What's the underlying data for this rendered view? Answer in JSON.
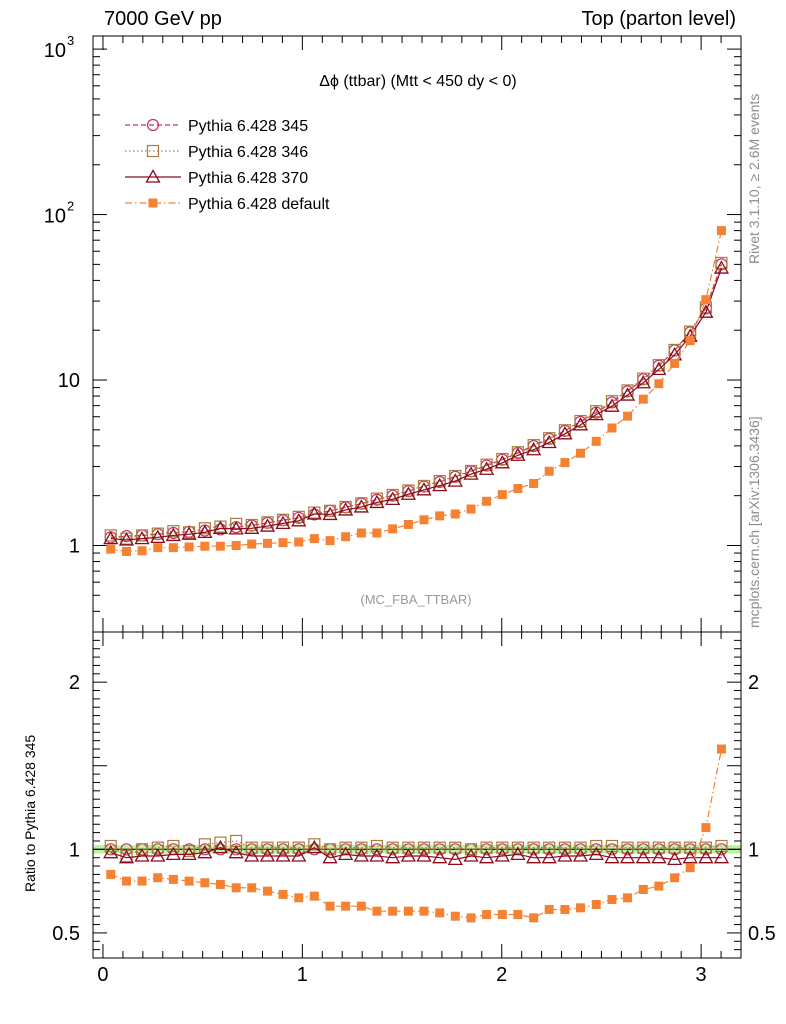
{
  "header": {
    "left": "7000 GeV pp",
    "right": "Top (parton level)"
  },
  "side_labels": {
    "rivet": "Rivet 3.1.10, ≥ 2.6M events",
    "mcplots": "mcplots.cern.ch [arXiv:1306.3436]"
  },
  "colors": {
    "p345": "#c8325a",
    "p346": "#a67c40",
    "p370": "#8b0a1e",
    "default": "#f58232",
    "band": "#a0f07a"
  },
  "chart_data": [
    {
      "type": "line",
      "title": "Δϕ (ttbar) (Mtt < 450 dy < 0)",
      "watermark": "(MC_FBA_TTBAR)",
      "xlabel": "",
      "ylabel": "",
      "xlim": [
        -0.05,
        3.2
      ],
      "ylim": [
        0.3,
        1200
      ],
      "yscale": "log",
      "yticks": [
        {
          "value": 1,
          "label": "1"
        },
        {
          "value": 10,
          "label": "10"
        },
        {
          "value": 100,
          "label": "10",
          "exp": "2"
        },
        {
          "value": 1000,
          "label": "10",
          "exp": "3"
        }
      ],
      "legend_position": "top-left",
      "x": [
        0.039,
        0.118,
        0.196,
        0.275,
        0.353,
        0.432,
        0.511,
        0.589,
        0.668,
        0.746,
        0.825,
        0.903,
        0.982,
        1.06,
        1.139,
        1.217,
        1.296,
        1.374,
        1.453,
        1.532,
        1.61,
        1.689,
        1.767,
        1.846,
        1.924,
        2.003,
        2.081,
        2.16,
        2.238,
        2.317,
        2.395,
        2.474,
        2.553,
        2.631,
        2.71,
        2.788,
        2.867,
        2.945,
        3.024,
        3.102
      ],
      "series": [
        {
          "name": "Pythia 6.428 345",
          "style": "dashed",
          "marker": "circle",
          "color": "#c8325a",
          "values": [
            1.12,
            1.14,
            1.15,
            1.17,
            1.19,
            1.21,
            1.23,
            1.25,
            1.29,
            1.32,
            1.37,
            1.42,
            1.47,
            1.54,
            1.62,
            1.7,
            1.79,
            1.89,
            2.0,
            2.13,
            2.27,
            2.42,
            2.6,
            2.81,
            3.04,
            3.3,
            3.62,
            3.99,
            4.41,
            4.93,
            5.58,
            6.35,
            7.32,
            8.54,
            10.1,
            12.2,
            15.1,
            19.4,
            27.1,
            50.0
          ]
        },
        {
          "name": "Pythia 6.428 346",
          "style": "dotted",
          "marker": "square",
          "color": "#a67c40",
          "values": [
            1.15,
            1.1,
            1.15,
            1.18,
            1.22,
            1.2,
            1.27,
            1.3,
            1.35,
            1.33,
            1.38,
            1.43,
            1.49,
            1.58,
            1.62,
            1.71,
            1.8,
            1.92,
            2.02,
            2.15,
            2.29,
            2.45,
            2.63,
            2.82,
            3.08,
            3.33,
            3.66,
            4.04,
            4.45,
            4.97,
            5.65,
            6.48,
            7.45,
            8.65,
            10.2,
            12.3,
            15.2,
            19.6,
            27.5,
            51.0
          ]
        },
        {
          "name": "Pythia 6.428 370",
          "style": "solid",
          "marker": "triangle",
          "color": "#8b0a1e",
          "values": [
            1.1,
            1.08,
            1.1,
            1.12,
            1.15,
            1.17,
            1.2,
            1.27,
            1.26,
            1.27,
            1.31,
            1.36,
            1.41,
            1.55,
            1.54,
            1.64,
            1.71,
            1.82,
            1.9,
            2.04,
            2.17,
            2.3,
            2.45,
            2.7,
            2.89,
            3.16,
            3.51,
            3.79,
            4.19,
            4.73,
            5.36,
            6.18,
            6.95,
            8.11,
            9.63,
            11.6,
            14.2,
            18.4,
            25.7,
            47.5
          ]
        },
        {
          "name": "Pythia 6.428 default",
          "style": "dashdot",
          "marker": "filled-square",
          "color": "#f58232",
          "values": [
            0.95,
            0.92,
            0.93,
            0.97,
            0.97,
            0.98,
            0.99,
            0.99,
            1.0,
            1.02,
            1.03,
            1.04,
            1.05,
            1.1,
            1.07,
            1.13,
            1.19,
            1.19,
            1.26,
            1.34,
            1.43,
            1.51,
            1.55,
            1.66,
            1.85,
            2.03,
            2.21,
            2.37,
            2.81,
            3.17,
            3.61,
            4.26,
            5.13,
            6.05,
            7.66,
            9.5,
            12.6,
            17.3,
            30.6,
            80.0
          ]
        }
      ]
    },
    {
      "type": "line",
      "ylabel": "Ratio to Pythia 6.428 345",
      "xlabel": "",
      "xlim": [
        -0.05,
        3.2
      ],
      "ylim": [
        0.35,
        2.3
      ],
      "yticks": [
        {
          "value": 0.5,
          "label": "0.5"
        },
        {
          "value": 1,
          "label": "1"
        },
        {
          "value": 2,
          "label": "2"
        }
      ],
      "xticks": [
        {
          "value": 0,
          "label": "0"
        },
        {
          "value": 1,
          "label": "1"
        },
        {
          "value": 2,
          "label": "2"
        },
        {
          "value": 3,
          "label": "3"
        }
      ],
      "reference_band": [
        0.975,
        1.025
      ],
      "x": [
        0.039,
        0.118,
        0.196,
        0.275,
        0.353,
        0.432,
        0.511,
        0.589,
        0.668,
        0.746,
        0.825,
        0.903,
        0.982,
        1.06,
        1.139,
        1.217,
        1.296,
        1.374,
        1.453,
        1.532,
        1.61,
        1.689,
        1.767,
        1.846,
        1.924,
        2.003,
        2.081,
        2.16,
        2.238,
        2.317,
        2.395,
        2.474,
        2.553,
        2.631,
        2.71,
        2.788,
        2.867,
        2.945,
        3.024,
        3.102
      ],
      "series": [
        {
          "name": "Pythia 6.428 345",
          "style": "dashed",
          "marker": "circle",
          "color": "#c8325a",
          "values": [
            1,
            1,
            1,
            1,
            1,
            1,
            1,
            1,
            1,
            1,
            1,
            1,
            1,
            1,
            1,
            1,
            1,
            1,
            1,
            1,
            1,
            1,
            1,
            1,
            1,
            1,
            1,
            1,
            1,
            1,
            1,
            1,
            1,
            1,
            1,
            1,
            1,
            1,
            1,
            1
          ]
        },
        {
          "name": "Pythia 6.428 346",
          "style": "dotted",
          "marker": "square",
          "color": "#a67c40",
          "values": [
            1.02,
            0.96,
            1.0,
            1.01,
            1.02,
            0.99,
            1.03,
            1.04,
            1.05,
            1.01,
            1.01,
            1.01,
            1.01,
            1.03,
            1.0,
            1.01,
            1.01,
            1.02,
            1.01,
            1.01,
            1.01,
            1.01,
            1.01,
            1.0,
            1.01,
            1.01,
            1.01,
            1.01,
            1.01,
            1.01,
            1.01,
            1.02,
            1.02,
            1.01,
            1.01,
            1.01,
            1.01,
            1.01,
            1.01,
            1.02
          ]
        },
        {
          "name": "Pythia 6.428 370",
          "style": "solid",
          "marker": "triangle",
          "color": "#8b0a1e",
          "values": [
            0.98,
            0.95,
            0.96,
            0.96,
            0.97,
            0.97,
            0.98,
            1.01,
            0.98,
            0.96,
            0.96,
            0.96,
            0.96,
            1.01,
            0.95,
            0.97,
            0.96,
            0.96,
            0.95,
            0.96,
            0.96,
            0.95,
            0.94,
            0.96,
            0.95,
            0.96,
            0.97,
            0.95,
            0.95,
            0.96,
            0.96,
            0.97,
            0.95,
            0.95,
            0.95,
            0.95,
            0.94,
            0.95,
            0.95,
            0.95
          ]
        },
        {
          "name": "Pythia 6.428 default",
          "style": "dashdot",
          "marker": "filled-square",
          "color": "#f58232",
          "values": [
            0.85,
            0.81,
            0.81,
            0.83,
            0.82,
            0.81,
            0.8,
            0.79,
            0.77,
            0.77,
            0.75,
            0.73,
            0.71,
            0.72,
            0.66,
            0.66,
            0.66,
            0.63,
            0.63,
            0.63,
            0.63,
            0.62,
            0.6,
            0.59,
            0.61,
            0.61,
            0.61,
            0.59,
            0.64,
            0.64,
            0.65,
            0.67,
            0.7,
            0.71,
            0.76,
            0.78,
            0.83,
            0.89,
            1.13,
            1.6
          ]
        }
      ]
    }
  ]
}
